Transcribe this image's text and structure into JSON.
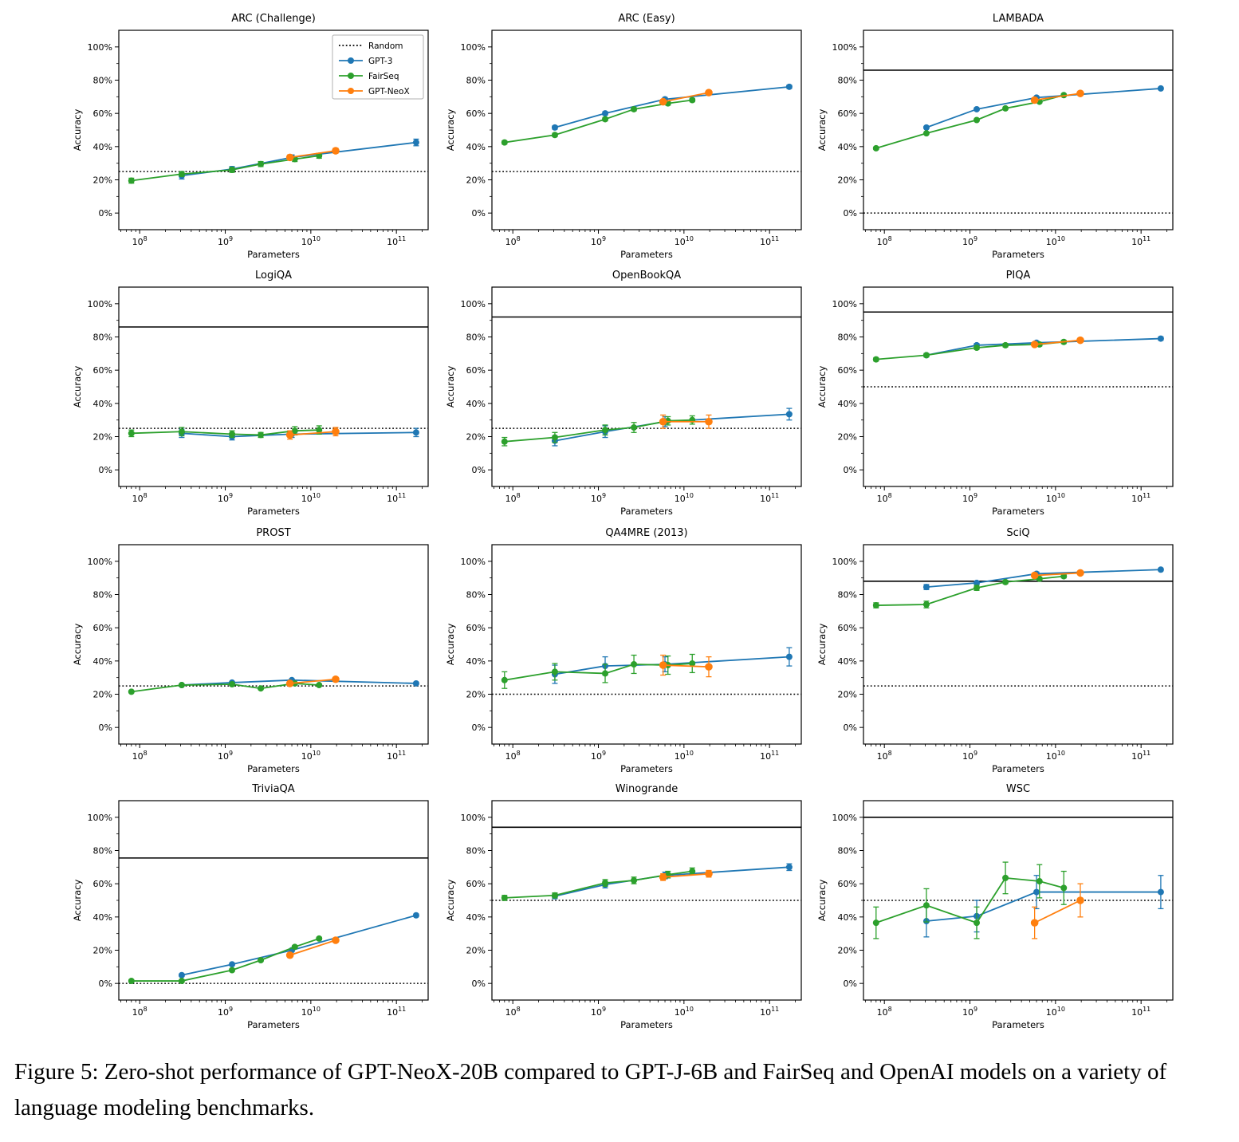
{
  "figure": {
    "caption": "Figure 5: Zero-shot performance of GPT-NeoX-20B compared to GPT-J-6B and FairSeq and OpenAI models on a variety of language modeling benchmarks."
  },
  "colors": {
    "gpt3": "#1f77b4",
    "fairseq": "#2ca02c",
    "gptneox": "#ff7f0e",
    "random": "#000000",
    "sota": "#000000"
  },
  "axes": {
    "xlabel": "Parameters",
    "ylabel": "Accuracy",
    "x_tick_exponents": [
      8,
      9,
      10,
      11
    ],
    "y_tick_percents": [
      0,
      20,
      40,
      60,
      80,
      100
    ],
    "y_minor_percents": [
      10,
      30,
      50,
      70,
      90
    ],
    "xscale": "log",
    "xlim": [
      57000000,
      235000000000
    ],
    "ylim_percent": [
      -10,
      110
    ]
  },
  "legend": {
    "position": "upper-right",
    "entries": [
      {
        "label": "Random",
        "style": "dotted",
        "color": "#000000"
      },
      {
        "label": "GPT-3",
        "style": "solid",
        "color": "#1f77b4"
      },
      {
        "label": "FairSeq",
        "style": "solid",
        "color": "#2ca02c"
      },
      {
        "label": "GPT-NeoX",
        "style": "solid",
        "color": "#ff7f0e"
      }
    ]
  },
  "chart_data": [
    {
      "type": "line",
      "title": "ARC (Challenge)",
      "xlabel": "Parameters",
      "ylabel": "Accuracy",
      "random_baseline": 25,
      "sota": null,
      "show_legend": true,
      "series": [
        {
          "name": "GPT-3",
          "color": "#1f77b4",
          "x": [
            310000000,
            1200000000,
            6000000000,
            170000000000
          ],
          "y": [
            22.5,
            26.5,
            33.5,
            42.5
          ],
          "yerr": [
            2,
            1.5,
            1.5,
            2
          ]
        },
        {
          "name": "FairSeq",
          "color": "#2ca02c",
          "x": [
            80000000,
            310000000,
            1200000000,
            2600000000,
            6500000000,
            12500000000
          ],
          "y": [
            19.5,
            23.5,
            26,
            29.5,
            32.5,
            34.5
          ],
          "yerr": [
            1.5,
            1.5,
            1.5,
            1.5,
            1.5,
            1.5
          ]
        },
        {
          "name": "GPT-NeoX",
          "color": "#ff7f0e",
          "x": [
            5700000000,
            19500000000
          ],
          "y": [
            33.5,
            37.5
          ],
          "yerr": [
            1.5,
            1.5
          ]
        }
      ]
    },
    {
      "type": "line",
      "title": "ARC (Easy)",
      "xlabel": "Parameters",
      "ylabel": "Accuracy",
      "random_baseline": 25,
      "sota": null,
      "show_legend": false,
      "series": [
        {
          "name": "GPT-3",
          "color": "#1f77b4",
          "x": [
            310000000,
            1200000000,
            6000000000,
            170000000000
          ],
          "y": [
            51.5,
            60,
            68.5,
            76
          ],
          "yerr": [
            1,
            1,
            1,
            1
          ]
        },
        {
          "name": "FairSeq",
          "color": "#2ca02c",
          "x": [
            80000000,
            310000000,
            1200000000,
            2600000000,
            6500000000,
            12500000000
          ],
          "y": [
            42.5,
            47,
            56.5,
            62.5,
            66,
            68
          ],
          "yerr": [
            1,
            1,
            1,
            1,
            1,
            1
          ]
        },
        {
          "name": "GPT-NeoX",
          "color": "#ff7f0e",
          "x": [
            5700000000,
            19500000000
          ],
          "y": [
            67,
            72.5
          ],
          "yerr": [
            1,
            1
          ]
        }
      ]
    },
    {
      "type": "line",
      "title": "LAMBADA",
      "xlabel": "Parameters",
      "ylabel": "Accuracy",
      "random_baseline": 0,
      "sota": 86,
      "show_legend": false,
      "series": [
        {
          "name": "GPT-3",
          "color": "#1f77b4",
          "x": [
            310000000,
            1200000000,
            6000000000,
            170000000000
          ],
          "y": [
            51.5,
            62.5,
            69.5,
            75
          ],
          "yerr": [
            0.7,
            0.7,
            0.7,
            0.7
          ]
        },
        {
          "name": "FairSeq",
          "color": "#2ca02c",
          "x": [
            80000000,
            310000000,
            1200000000,
            2600000000,
            6500000000,
            12500000000
          ],
          "y": [
            39,
            48,
            56,
            63,
            67,
            71
          ],
          "yerr": [
            0.7,
            0.7,
            0.7,
            0.7,
            0.7,
            0.7
          ]
        },
        {
          "name": "GPT-NeoX",
          "color": "#ff7f0e",
          "x": [
            5700000000,
            19500000000
          ],
          "y": [
            68,
            72
          ],
          "yerr": [
            0.7,
            0.7
          ]
        }
      ]
    },
    {
      "type": "line",
      "title": "LogiQA",
      "xlabel": "Parameters",
      "ylabel": "Accuracy",
      "random_baseline": 25,
      "sota": 86,
      "show_legend": false,
      "series": [
        {
          "name": "GPT-3",
          "color": "#1f77b4",
          "x": [
            310000000,
            1200000000,
            6000000000,
            170000000000
          ],
          "y": [
            22,
            20,
            21.5,
            22.5
          ],
          "yerr": [
            2.5,
            2,
            2,
            2.5
          ]
        },
        {
          "name": "FairSeq",
          "color": "#2ca02c",
          "x": [
            80000000,
            310000000,
            1200000000,
            2600000000,
            6500000000,
            12500000000
          ],
          "y": [
            22,
            23,
            21.5,
            21,
            23.5,
            24
          ],
          "yerr": [
            2,
            2.5,
            2,
            1.5,
            2.5,
            2.5
          ]
        },
        {
          "name": "GPT-NeoX",
          "color": "#ff7f0e",
          "x": [
            5700000000,
            19500000000
          ],
          "y": [
            21,
            23
          ],
          "yerr": [
            2.5,
            2.5
          ]
        }
      ]
    },
    {
      "type": "line",
      "title": "OpenBookQA",
      "xlabel": "Parameters",
      "ylabel": "Accuracy",
      "random_baseline": 25,
      "sota": 92,
      "show_legend": false,
      "series": [
        {
          "name": "GPT-3",
          "color": "#1f77b4",
          "x": [
            310000000,
            1200000000,
            6000000000,
            170000000000
          ],
          "y": [
            17.5,
            23,
            29,
            33.5
          ],
          "yerr": [
            3,
            3.5,
            3,
            3.5
          ]
        },
        {
          "name": "FairSeq",
          "color": "#2ca02c",
          "x": [
            80000000,
            310000000,
            1200000000,
            2600000000,
            6500000000,
            12500000000
          ],
          "y": [
            17,
            19.5,
            24,
            25.5,
            29.5,
            30
          ],
          "yerr": [
            2.5,
            3,
            3,
            3,
            2.5,
            2.5
          ]
        },
        {
          "name": "GPT-NeoX",
          "color": "#ff7f0e",
          "x": [
            5700000000,
            19500000000
          ],
          "y": [
            29,
            29
          ],
          "yerr": [
            4,
            4
          ]
        }
      ]
    },
    {
      "type": "line",
      "title": "PIQA",
      "xlabel": "Parameters",
      "ylabel": "Accuracy",
      "random_baseline": 50,
      "sota": 95,
      "show_legend": false,
      "series": [
        {
          "name": "GPT-3",
          "color": "#1f77b4",
          "x": [
            310000000,
            1200000000,
            6000000000,
            170000000000
          ],
          "y": [
            69,
            75,
            76.5,
            79
          ],
          "yerr": [
            1,
            1,
            1,
            1
          ]
        },
        {
          "name": "FairSeq",
          "color": "#2ca02c",
          "x": [
            80000000,
            310000000,
            1200000000,
            2600000000,
            6500000000,
            12500000000
          ],
          "y": [
            66.5,
            69,
            73.5,
            75,
            75.5,
            77
          ],
          "yerr": [
            1,
            1,
            1,
            1,
            1,
            1
          ]
        },
        {
          "name": "GPT-NeoX",
          "color": "#ff7f0e",
          "x": [
            5700000000,
            19500000000
          ],
          "y": [
            75.5,
            78
          ],
          "yerr": [
            1,
            1
          ]
        }
      ]
    },
    {
      "type": "line",
      "title": "PROST",
      "xlabel": "Parameters",
      "ylabel": "Accuracy",
      "random_baseline": 25,
      "sota": null,
      "show_legend": false,
      "series": [
        {
          "name": "GPT-3",
          "color": "#1f77b4",
          "x": [
            310000000,
            1200000000,
            6000000000,
            170000000000
          ],
          "y": [
            25.5,
            27,
            28.5,
            26.5
          ],
          "yerr": [
            0.6,
            0.6,
            0.6,
            0.6
          ]
        },
        {
          "name": "FairSeq",
          "color": "#2ca02c",
          "x": [
            80000000,
            310000000,
            1200000000,
            2600000000,
            6500000000,
            12500000000
          ],
          "y": [
            21.5,
            25.5,
            26,
            23.5,
            26.5,
            25.5
          ],
          "yerr": [
            0.6,
            0.6,
            0.6,
            0.6,
            0.6,
            0.6
          ]
        },
        {
          "name": "GPT-NeoX",
          "color": "#ff7f0e",
          "x": [
            5700000000,
            19500000000
          ],
          "y": [
            26.5,
            29
          ],
          "yerr": [
            0.6,
            0.6
          ]
        }
      ]
    },
    {
      "type": "line",
      "title": "QA4MRE (2013)",
      "xlabel": "Parameters",
      "ylabel": "Accuracy",
      "random_baseline": 20,
      "sota": null,
      "show_legend": false,
      "series": [
        {
          "name": "GPT-3",
          "color": "#1f77b4",
          "x": [
            310000000,
            1200000000,
            6000000000,
            170000000000
          ],
          "y": [
            32,
            37,
            38,
            42.5
          ],
          "yerr": [
            5.5,
            5.5,
            4.5,
            5.5
          ]
        },
        {
          "name": "FairSeq",
          "color": "#2ca02c",
          "x": [
            80000000,
            310000000,
            1200000000,
            2600000000,
            6500000000,
            12500000000
          ],
          "y": [
            28.5,
            33.5,
            32.5,
            38,
            37.5,
            38.5
          ],
          "yerr": [
            5,
            5,
            5.5,
            5.5,
            5.5,
            5.5
          ]
        },
        {
          "name": "GPT-NeoX",
          "color": "#ff7f0e",
          "x": [
            5700000000,
            19500000000
          ],
          "y": [
            37.5,
            36.5
          ],
          "yerr": [
            6,
            6
          ]
        }
      ]
    },
    {
      "type": "line",
      "title": "SciQ",
      "xlabel": "Parameters",
      "ylabel": "Accuracy",
      "random_baseline": 25,
      "sota": 88,
      "show_legend": false,
      "series": [
        {
          "name": "GPT-3",
          "color": "#1f77b4",
          "x": [
            310000000,
            1200000000,
            6000000000,
            170000000000
          ],
          "y": [
            84.5,
            87,
            92.5,
            95
          ],
          "yerr": [
            1.5,
            1,
            1,
            0.7
          ]
        },
        {
          "name": "FairSeq",
          "color": "#2ca02c",
          "x": [
            80000000,
            310000000,
            1200000000,
            2600000000,
            6500000000,
            12500000000
          ],
          "y": [
            73.5,
            74,
            84,
            87.5,
            89.5,
            91
          ],
          "yerr": [
            1.5,
            2,
            1.5,
            1,
            1,
            1
          ]
        },
        {
          "name": "GPT-NeoX",
          "color": "#ff7f0e",
          "x": [
            5700000000,
            19500000000
          ],
          "y": [
            91.5,
            93
          ],
          "yerr": [
            1,
            0.8
          ]
        }
      ]
    },
    {
      "type": "line",
      "title": "TriviaQA",
      "xlabel": "Parameters",
      "ylabel": "Accuracy",
      "random_baseline": 0,
      "sota": 75.5,
      "show_legend": false,
      "series": [
        {
          "name": "GPT-3",
          "color": "#1f77b4",
          "x": [
            310000000,
            1200000000,
            6000000000,
            170000000000
          ],
          "y": [
            5,
            11.5,
            20,
            41
          ],
          "yerr": [
            0.8,
            0.8,
            0.8,
            0.8
          ]
        },
        {
          "name": "FairSeq",
          "color": "#2ca02c",
          "x": [
            80000000,
            310000000,
            1200000000,
            2600000000,
            6500000000,
            12500000000
          ],
          "y": [
            1.5,
            1.5,
            8,
            14,
            22,
            27
          ],
          "yerr": [
            0.8,
            0.8,
            0.8,
            0.8,
            0.8,
            0.8
          ]
        },
        {
          "name": "GPT-NeoX",
          "color": "#ff7f0e",
          "x": [
            5700000000,
            19500000000
          ],
          "y": [
            17,
            26
          ],
          "yerr": [
            0.8,
            0.8
          ]
        }
      ]
    },
    {
      "type": "line",
      "title": "Winogrande",
      "xlabel": "Parameters",
      "ylabel": "Accuracy",
      "random_baseline": 50,
      "sota": 94,
      "show_legend": false,
      "series": [
        {
          "name": "GPT-3",
          "color": "#1f77b4",
          "x": [
            310000000,
            1200000000,
            6000000000,
            170000000000
          ],
          "y": [
            52.5,
            59.5,
            65,
            70
          ],
          "yerr": [
            1.5,
            2,
            2,
            2
          ]
        },
        {
          "name": "FairSeq",
          "color": "#2ca02c",
          "x": [
            80000000,
            310000000,
            1200000000,
            2600000000,
            6500000000,
            12500000000
          ],
          "y": [
            51.5,
            53,
            60.5,
            62,
            65.5,
            67.5
          ],
          "yerr": [
            1.5,
            1.5,
            2,
            2,
            2,
            2
          ]
        },
        {
          "name": "GPT-NeoX",
          "color": "#ff7f0e",
          "x": [
            5700000000,
            19500000000
          ],
          "y": [
            64,
            66
          ],
          "yerr": [
            2,
            2
          ]
        }
      ]
    },
    {
      "type": "line",
      "title": "WSC",
      "xlabel": "Parameters",
      "ylabel": "Accuracy",
      "random_baseline": 50,
      "sota": 100,
      "show_legend": false,
      "series": [
        {
          "name": "GPT-3",
          "color": "#1f77b4",
          "x": [
            310000000,
            1200000000,
            6000000000,
            170000000000
          ],
          "y": [
            37.5,
            40.5,
            55,
            55
          ],
          "yerr": [
            9.5,
            9.5,
            10,
            10
          ]
        },
        {
          "name": "FairSeq",
          "color": "#2ca02c",
          "x": [
            80000000,
            310000000,
            1200000000,
            2600000000,
            6500000000,
            12500000000
          ],
          "y": [
            36.5,
            47,
            36.5,
            63.5,
            61.5,
            57.5
          ],
          "yerr": [
            9.5,
            10,
            9.5,
            9.5,
            10,
            10
          ]
        },
        {
          "name": "GPT-NeoX",
          "color": "#ff7f0e",
          "x": [
            5700000000,
            19500000000
          ],
          "y": [
            36.5,
            50
          ],
          "yerr": [
            9.5,
            10
          ]
        }
      ]
    }
  ]
}
